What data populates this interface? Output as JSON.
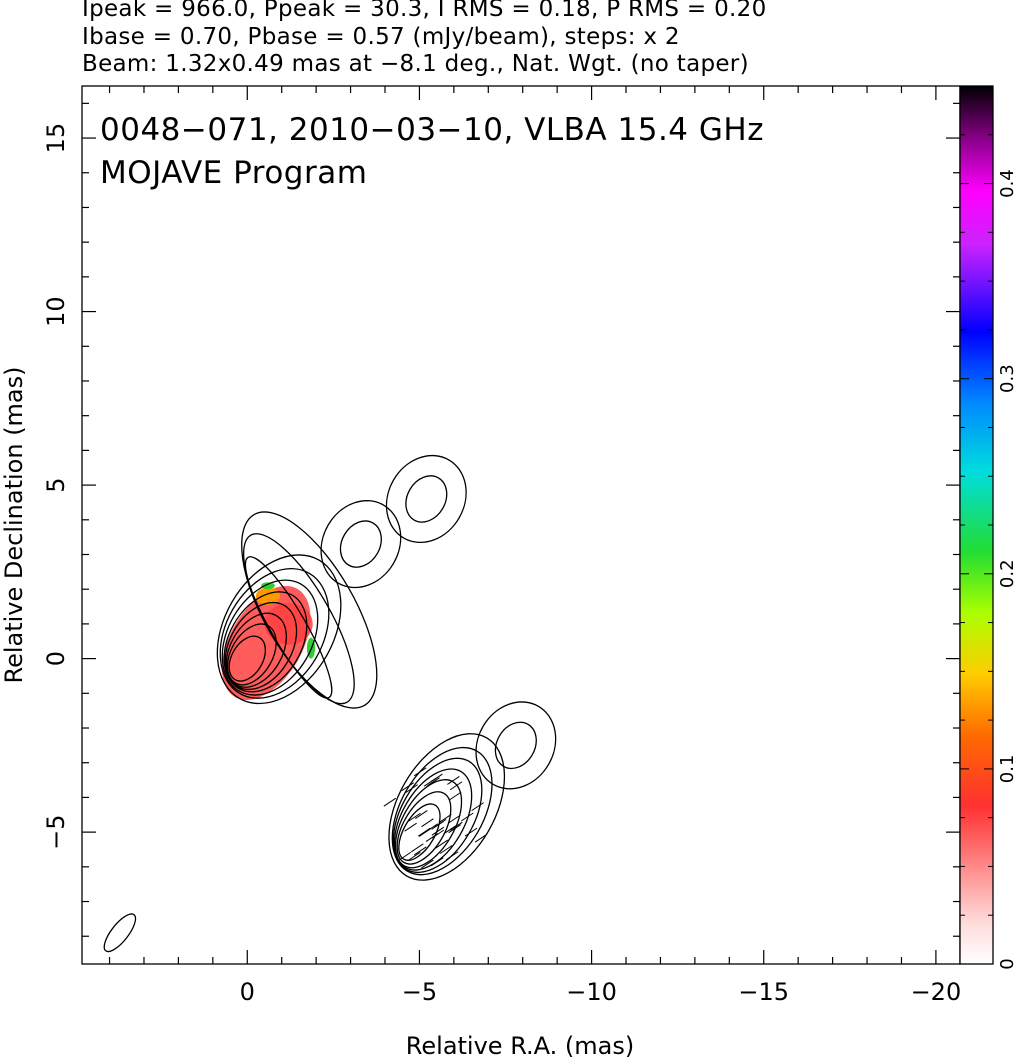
{
  "header": {
    "line1": "Ipeak = 966.0, Ppeak = 30.3, I RMS = 0.18, P RMS = 0.20",
    "line2": "Ibase = 0.70, Pbase = 0.57 (mJy/beam), steps: x 2",
    "line3": "Beam: 1.32x0.49 mas at −8.1 deg., Nat. Wgt. (no taper)"
  },
  "chart_data": {
    "type": "contour",
    "title": "0048−071, 2010−03−10, VLBA 15.4 GHz",
    "subtitle": "MOJAVE Program",
    "xlabel": "Relative R.A. (mas)",
    "ylabel": "Relative Declination (mas)",
    "xlim": [
      4.8,
      -20.7
    ],
    "ylim": [
      -8.8,
      16.5
    ],
    "x_ticks": [
      0,
      -5,
      -10,
      -15,
      -20
    ],
    "x_tick_labels": [
      "0",
      "−5",
      "−10",
      "−15",
      "−20"
    ],
    "y_ticks": [
      -5,
      0,
      5,
      10,
      15
    ],
    "y_tick_labels": [
      "−5",
      "0",
      "5",
      "10",
      "15"
    ],
    "colorbar": {
      "range": [
        0,
        0.45
      ],
      "ticks": [
        0,
        0.1,
        0.2,
        0.3,
        0.4
      ],
      "tick_labels": [
        "0",
        "0.1",
        "0.2",
        "0.3",
        "0.4"
      ]
    },
    "panels": [
      {
        "name": "total-intensity",
        "offset": [
          0,
          0
        ],
        "core": [
          0,
          0
        ],
        "core_contours": [
          [
            0.45,
            0.7
          ],
          [
            0.6,
            0.95
          ],
          [
            0.75,
            1.15
          ],
          [
            0.9,
            1.35
          ],
          [
            1.05,
            1.55
          ],
          [
            1.22,
            1.78
          ],
          [
            1.4,
            2.0
          ],
          [
            1.58,
            2.3
          ]
        ],
        "jet_contours": [
          [
            2.35,
            0.5
          ],
          [
            2.8,
            0.9
          ],
          [
            3.2,
            1.3
          ]
        ],
        "knots": [
          {
            "x": -5.2,
            "y": 4.6
          },
          {
            "x": -3.3,
            "y": 3.3
          }
        ]
      },
      {
        "name": "polarized-intensity",
        "offset": [
          -5,
          -5
        ],
        "core": [
          0,
          0
        ],
        "core_contours": [
          [
            0.45,
            0.9
          ],
          [
            0.6,
            1.15
          ],
          [
            0.75,
            1.4
          ],
          [
            0.9,
            1.6
          ],
          [
            1.05,
            1.8
          ],
          [
            1.2,
            2.0
          ],
          [
            1.4,
            2.3
          ]
        ],
        "knots": [
          {
            "x": -2.8,
            "y": 2.5
          }
        ]
      }
    ],
    "beam": {
      "major_mas": 1.32,
      "minor_mas": 0.49,
      "pa_deg": -8.1,
      "center": [
        3.7,
        -7.9
      ]
    },
    "colors": {
      "contour": "#000000",
      "fill_low": "#ff4040",
      "fill_mid": "#ff9900",
      "fill_high": "#33cc33"
    }
  }
}
